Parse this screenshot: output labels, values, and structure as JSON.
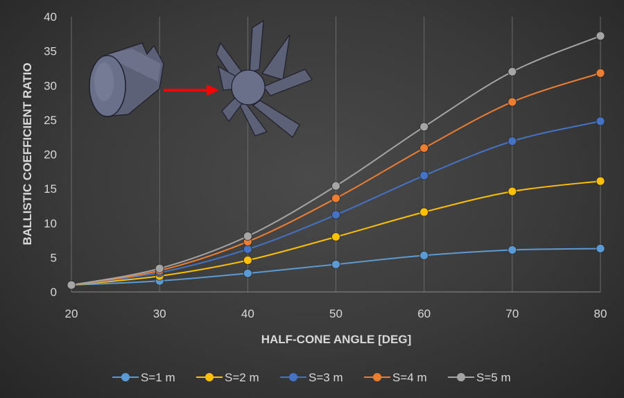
{
  "chart_data": {
    "type": "line",
    "xlabel": "HALF-CONE ANGLE [DEG]",
    "ylabel": "BALLISTIC COEFFICIENT RATIO",
    "x": [
      20,
      30,
      40,
      50,
      60,
      70,
      80
    ],
    "xlim": [
      20,
      80
    ],
    "ylim": [
      0,
      40
    ],
    "xticks": [
      "20",
      "30",
      "40",
      "50",
      "60",
      "70",
      "80"
    ],
    "yticks": [
      "0",
      "5",
      "10",
      "15",
      "20",
      "25",
      "30",
      "35",
      "40"
    ],
    "grid": "vertical",
    "legend_position": "bottom",
    "series": [
      {
        "name": "S=1 m",
        "color": "#5b9bd5",
        "values": [
          1.0,
          1.6,
          2.7,
          4.0,
          5.3,
          6.1,
          6.3
        ]
      },
      {
        "name": "S=2 m",
        "color": "#ffc000",
        "values": [
          1.0,
          2.3,
          4.6,
          8.0,
          11.6,
          14.6,
          16.1
        ]
      },
      {
        "name": "S=3 m",
        "color": "#4472c4",
        "values": [
          1.0,
          2.8,
          6.2,
          11.2,
          16.9,
          21.9,
          24.8
        ]
      },
      {
        "name": "S=4 m",
        "color": "#ed7d31",
        "values": [
          1.0,
          3.1,
          7.3,
          13.6,
          20.9,
          27.6,
          31.8
        ]
      },
      {
        "name": "S=5 m",
        "color": "#a5a5a5",
        "values": [
          1.0,
          3.4,
          8.1,
          15.4,
          24.0,
          32.0,
          37.2
        ]
      }
    ]
  },
  "inset": {
    "icons": [
      "folded-cone-icon",
      "right-arrow-icon",
      "deployed-petals-icon"
    ],
    "arrow_color": "#ff0000"
  }
}
